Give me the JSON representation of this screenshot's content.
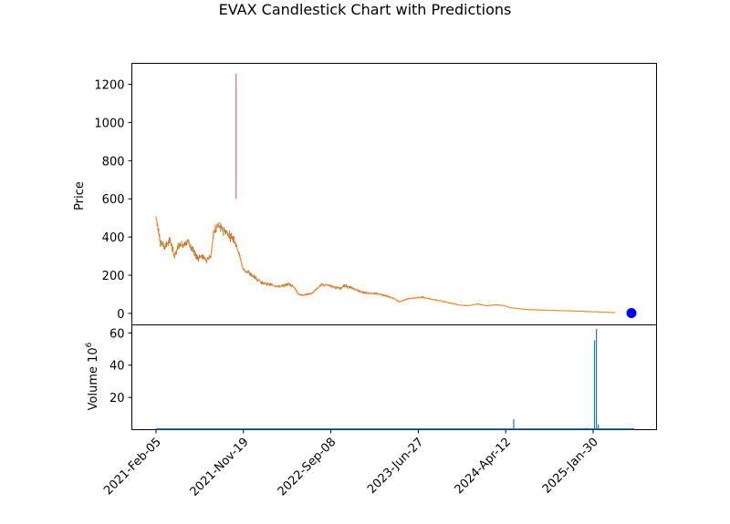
{
  "chart_data": {
    "type": "candlestick",
    "title": "EVAX Candlestick Chart with Predictions",
    "price_panel": {
      "ylabel": "Price",
      "ylim": [
        -60,
        1310
      ],
      "yticks": [
        0,
        200,
        400,
        600,
        800,
        1000,
        1200
      ],
      "spike": {
        "date_index": 1,
        "low": 600,
        "high": 1255,
        "color": "#d62728"
      },
      "price_path": [
        [
          0.0,
          505
        ],
        [
          0.004,
          455
        ],
        [
          0.01,
          370
        ],
        [
          0.02,
          350
        ],
        [
          0.03,
          385
        ],
        [
          0.04,
          300
        ],
        [
          0.05,
          360
        ],
        [
          0.06,
          360
        ],
        [
          0.07,
          380
        ],
        [
          0.08,
          330
        ],
        [
          0.09,
          290
        ],
        [
          0.1,
          300
        ],
        [
          0.11,
          280
        ],
        [
          0.12,
          300
        ],
        [
          0.125,
          420
        ],
        [
          0.135,
          460
        ],
        [
          0.145,
          440
        ],
        [
          0.155,
          420
        ],
        [
          0.165,
          400
        ],
        [
          0.17,
          390
        ],
        [
          0.18,
          320
        ],
        [
          0.19,
          230
        ],
        [
          0.2,
          215
        ],
        [
          0.215,
          190
        ],
        [
          0.23,
          160
        ],
        [
          0.25,
          150
        ],
        [
          0.27,
          140
        ],
        [
          0.29,
          155
        ],
        [
          0.3,
          140
        ],
        [
          0.31,
          100
        ],
        [
          0.32,
          95
        ],
        [
          0.34,
          105
        ],
        [
          0.35,
          130
        ],
        [
          0.36,
          150
        ],
        [
          0.38,
          145
        ],
        [
          0.4,
          130
        ],
        [
          0.41,
          145
        ],
        [
          0.43,
          130
        ],
        [
          0.45,
          110
        ],
        [
          0.47,
          105
        ],
        [
          0.49,
          100
        ],
        [
          0.51,
          85
        ],
        [
          0.52,
          75
        ],
        [
          0.53,
          60
        ],
        [
          0.545,
          75
        ],
        [
          0.56,
          80
        ],
        [
          0.58,
          85
        ],
        [
          0.6,
          75
        ],
        [
          0.62,
          65
        ],
        [
          0.64,
          55
        ],
        [
          0.66,
          45
        ],
        [
          0.68,
          40
        ],
        [
          0.7,
          50
        ],
        [
          0.72,
          40
        ],
        [
          0.74,
          45
        ],
        [
          0.76,
          40
        ],
        [
          0.77,
          30
        ],
        [
          0.79,
          25
        ],
        [
          0.81,
          20
        ],
        [
          0.84,
          18
        ],
        [
          0.88,
          15
        ],
        [
          0.92,
          12
        ],
        [
          0.96,
          8
        ],
        [
          1.0,
          4
        ]
      ],
      "prediction_point": {
        "value": 2,
        "color": "#0000ff"
      }
    },
    "volume_panel": {
      "ylabel": "Volume  10",
      "ylabel_exponent": "6",
      "ylim": [
        0,
        65
      ],
      "yticks": [
        20,
        40,
        60
      ],
      "bars": [
        {
          "t": 0.0,
          "v": 0.6
        },
        {
          "t": 0.744,
          "v": 6.5
        },
        {
          "t": 0.896,
          "v": 1.2
        },
        {
          "t": 0.912,
          "v": 55.5
        },
        {
          "t": 0.916,
          "v": 62.5
        },
        {
          "t": 0.92,
          "v": 3.2
        }
      ]
    },
    "x_axis": {
      "tick_labels": [
        "2021-Feb-05",
        "2021-Nov-19",
        "2022-Sep-08",
        "2023-Jun-27",
        "2024-Apr-12",
        "2025-Jan-30"
      ],
      "tick_positions": [
        0,
        0.1818,
        0.3636,
        0.5455,
        0.7273,
        0.9091
      ]
    },
    "colors": {
      "up": "#2ca02c",
      "down": "#d62728",
      "prediction_line": "#ff7f0e",
      "volume": "#1f77b4",
      "axes": "#000000"
    }
  }
}
